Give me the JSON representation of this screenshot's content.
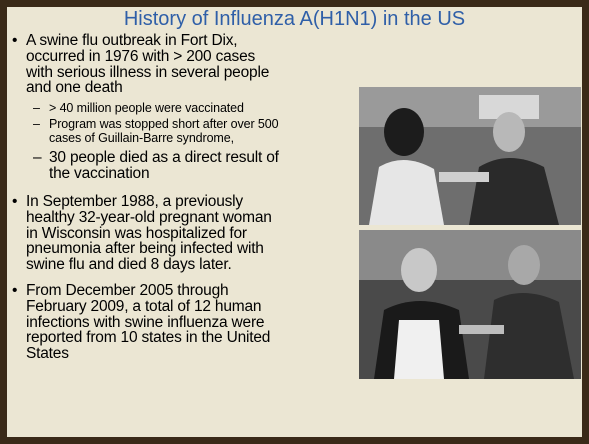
{
  "title": "History of Influenza A(H1N1) in the US",
  "bullets": [
    {
      "lines": [
        "A swine flu outbreak in Fort Dix,",
        "occurred in 1976 with > 200 cases",
        "with serious illness in several people",
        "and one death"
      ],
      "sub": [
        {
          "lines": [
            "> 40 million people were vaccinated"
          ]
        },
        {
          "lines": [
            "Program was stopped short after over 500",
            "cases of Guillain-Barre syndrome,"
          ]
        },
        {
          "lines": [
            "30 people died as a direct result of",
            "the vaccination"
          ]
        }
      ]
    },
    {
      "lines": [
        "In September 1988, a previously",
        "healthy 32-year-old pregnant woman",
        "in Wisconsin was hospitalized for",
        "pneumonia after being infected with",
        "swine flu and died 8 days later."
      ]
    },
    {
      "lines": [
        "From December 2005 through",
        "February 2009, a total of 12 human",
        "infections with swine influenza were",
        "reported from 10 states in the United",
        "States"
      ]
    }
  ]
}
